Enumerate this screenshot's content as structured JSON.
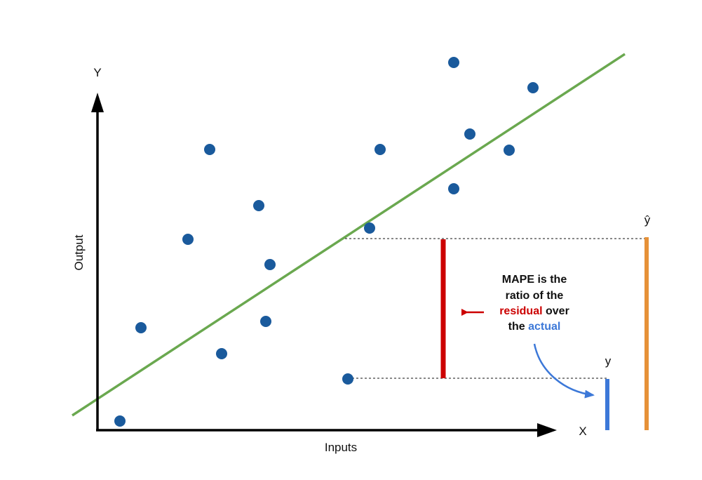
{
  "diagram": {
    "y_axis_letter": "Y",
    "x_axis_letter": "X",
    "y_axis_title": "Output",
    "x_axis_title": "Inputs",
    "y_hat_label": "ŷ",
    "y_label": "y",
    "note": {
      "line1": "MAPE is the",
      "line2": "ratio of the",
      "residual_word": "residual",
      "over_word": " over",
      "the_word": "the ",
      "actual_word": "actual"
    }
  },
  "colors": {
    "points": "#1a5a9c",
    "regression_line": "#6aa84f",
    "residual_bar": "#cc0000",
    "actual_bar": "#3c78d8",
    "predicted_bar": "#e69138",
    "axes": "#000000"
  },
  "icons": {
    "residual_pointer": "left-arrow-icon",
    "actual_pointer": "curved-arrow-icon"
  }
}
